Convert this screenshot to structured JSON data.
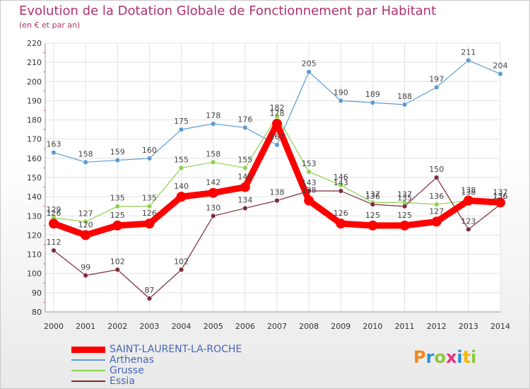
{
  "header": {
    "title": "Evolution de la Dotation Globale de Fonctionnement par Habitant",
    "subtitle": "(en € et par an)"
  },
  "logo": {
    "text": "Proxiti",
    "colors": [
      "#f08a1c",
      "#2b8fd6",
      "#8dc63f",
      "#e8327c",
      "#2b8fd6",
      "#f5b800",
      "#8dc63f"
    ]
  },
  "chart_data": {
    "type": "line",
    "title": "Evolution de la Dotation Globale de Fonctionnement par Habitant",
    "subtitle": "(en € et par an)",
    "xlabel": "",
    "ylabel": "",
    "x": [
      "2000",
      "2001",
      "2002",
      "2003",
      "2004",
      "2005",
      "2006",
      "2007",
      "2008",
      "2009",
      "2010",
      "2011",
      "2012",
      "2013",
      "2014"
    ],
    "ylim": [
      80,
      220
    ],
    "yticks": [
      80,
      90,
      100,
      110,
      120,
      130,
      140,
      150,
      160,
      170,
      180,
      190,
      200,
      210,
      220
    ],
    "grid": true,
    "legend": "bottom-left",
    "series": [
      {
        "name": "Arthenas",
        "color": "#5b9bd5",
        "values": [
          163,
          158,
          159,
          160,
          175,
          178,
          176,
          167,
          205,
          190,
          189,
          188,
          197,
          211,
          204
        ]
      },
      {
        "name": "Grusse",
        "color": "#8ed04f",
        "values": [
          129,
          127,
          135,
          135,
          155,
          158,
          155,
          182,
          153,
          146,
          137,
          137,
          136,
          138,
          136
        ]
      },
      {
        "name": "Essia",
        "color": "#7b2b36",
        "values": [
          112,
          99,
          102,
          87,
          102,
          130,
          134,
          138,
          143,
          143,
          136,
          135,
          150,
          123,
          136
        ]
      },
      {
        "name": "SAINT-LAURENT-LA-ROCHE",
        "color": "#ff0000",
        "values": [
          126,
          120,
          125,
          126,
          140,
          142,
          145,
          178,
          138,
          126,
          125,
          125,
          127,
          138,
          137
        ]
      }
    ]
  }
}
